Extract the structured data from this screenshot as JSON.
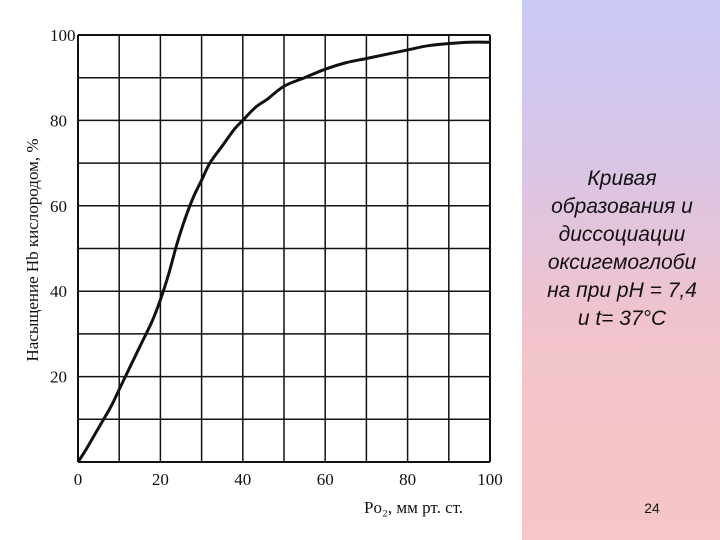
{
  "slide": {
    "caption": "Кривая\nобразования и\nдиссоциации\nоксигемоглоби\nна при pH = 7,4\nи t= 37°C",
    "page_number": "24",
    "colors": {
      "panel_top": "#c9c9f6",
      "panel_bottom": "#f7c6c6",
      "curve": "#111111",
      "grid": "#111111"
    }
  },
  "chart_data": {
    "type": "line",
    "title": "",
    "xlabel": "Po₂, мм рт. ст.",
    "ylabel": "Насыщение Hb кислородом, %",
    "xlim": [
      0,
      100
    ],
    "ylim": [
      0,
      100
    ],
    "x_ticks": [
      "0",
      "20",
      "40",
      "60",
      "80",
      "100"
    ],
    "y_ticks": [
      "20",
      "40",
      "60",
      "80",
      "100"
    ],
    "grid": true,
    "series": [
      {
        "x": [
          0,
          2,
          5,
          8,
          10,
          12,
          15,
          18,
          20,
          22,
          24,
          26,
          28,
          30,
          32,
          35,
          38,
          40,
          43,
          46,
          50,
          55,
          60,
          65,
          70,
          75,
          80,
          85,
          90,
          95,
          100
        ],
        "values": [
          0,
          3,
          8,
          13,
          17,
          21,
          27,
          33,
          38,
          44,
          51,
          57,
          62,
          66,
          70,
          74,
          78,
          80,
          83,
          85,
          88,
          90,
          92,
          93.5,
          94.5,
          95.5,
          96.5,
          97.5,
          98,
          98.3,
          98.3
        ]
      }
    ]
  }
}
